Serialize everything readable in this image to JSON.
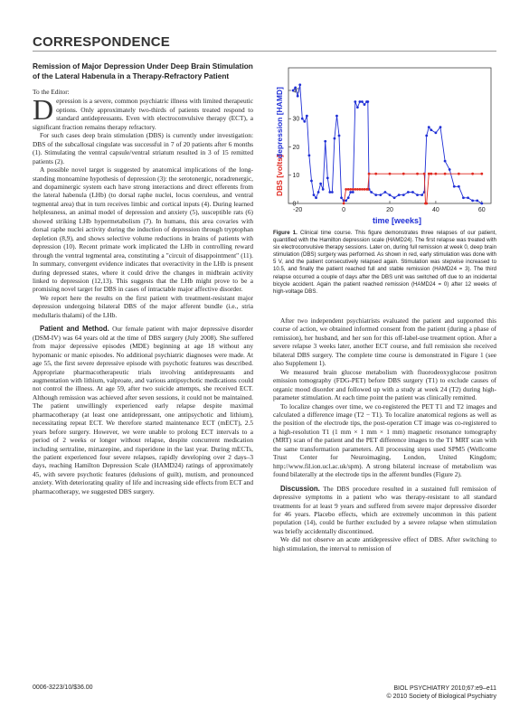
{
  "header": {
    "section": "CORRESPONDENCE"
  },
  "article": {
    "title": "Remission of Major Depression Under Deep Brain Stimulation of the Lateral Habenula in a Therapy-Refractory Patient",
    "salutation": "To the Editor:",
    "dropcap": "D",
    "intro_rest": "epression is a severe, common psychiatric illness with limited therapeutic options. Only approximately two-thirds of patients treated respond to standard antidepressants. Even with electroconvulsive therapy (ECT), a significant fraction remains therapy refractory.",
    "para2": "For such cases deep brain stimulation (DBS) is currently under investigation: DBS of the subcallosal cingulate was successful in 7 of 20 patients after 6 months (1). Stimulating the ventral capsule/ventral striatum resulted in 3 of 15 remitted patients (2).",
    "para3": "A possible novel target is suggested by anatomical implications of the long-standing monoamine hypothesis of depression (3): the serotonergic, noradrenergic, and dopaminergic system each have strong interactions and direct efferents from the lateral habenula (LHb) (to dorsal raphe nuclei, locus coeruleus, and ventral tegmental area) that in turn receives limbic and cortical inputs (4). During learned helplessness, an animal model of depression and anxiety (5), susceptible rats (6) showed striking LHb hypermetabolism (7). In humans, this area covaries with dorsal raphe nuclei activity during the induction of depression through tryptophan depletion (8,9), and shows selective volume reductions in brains of patients with depression (10). Recent primate work implicated the LHb in controlling reward through the ventral tegmental area, constituting a \"circuit of disappointment\" (11). In summary, convergent evidence indicates that overactivity in the LHb is present during depressed states, where it could drive the changes in midbrain activity linked to depression (12,13). This suggests that the LHb might prove to be a promising novel target for DBS in cases of intractable major affective disorder.",
    "para4": "We report here the results on the first patient with treatment-resistant major depression undergoing bilateral DBS of the major afferent bundle (i.e., stria medullaris thalami) of the LHb.",
    "methods_head": "Patient and Method.",
    "methods_text": "Our female patient with major depressive disorder (DSM-IV) was 64 years old at the time of DBS surgery (July 2008). She suffered from major depressive episodes (MDE) beginning at age 18 without any hypomanic or manic episodes. No additional psychiatric diagnoses were made. At age 55, the first severe depressive episode with psychotic features was described. Appropriate pharmacotherapeutic trials involving antidepressants and augmentation with lithium, valproate, and various antipsychotic medications could not control the illness. At age 59, after two suicide attempts, she received ECT. Although remission was achieved after seven sessions, it could not be maintained. The patient unwillingly experienced early relapse despite maximal pharmacotherapy (at least one antidepressant, one antipsychotic and lithium), necessitating repeat ECT. We therefore started maintenance ECT (mECT), 2.5 years before surgery. However, we were unable to prolong ECT intervals to a period of 2 weeks or longer without relapse, despite concurrent medication including sertraline, mirtazepine, and risperidone in the last year. During mECTs, the patient experienced four severe relapses, rapidly developing over 2 days–3 days, reaching Hamilton Depression Scale (HAMD24) ratings of approximately 45, with severe psychotic features (delusions of guilt), mutism, and pronounced anxiety. With deteriorating quality of life and increasing side effects from ECT and pharmacotherapy, we suggested DBS surgery.",
    "right_p1": "After two independent psychiatrists evaluated the patient and supported this course of action, we obtained informed consent from the patient (during a phase of remission), her husband, and her son for this off-label-use treatment option. After a severe relapse 3 weeks later, another ECT course, and full remission she received bilateral DBS surgery. The complete time course is demonstrated in Figure 1 (see also Supplement 1).",
    "right_p2": "We measured brain glucose metabolism with fluorodeoxyglucose positron emission tomography (FDG-PET) before DBS surgery (T1) to exclude causes of organic mood disorder and followed up with a study at week 24 (T2) during high-parameter stimulation. At each time point the patient was clinically remitted.",
    "right_p3": "To localize changes over time, we co-registered the PET T1 and T2 images and calculated a difference image (T2 − T1). To localize anatomical regions as well as the position of the electrode tips, the post-operation CT image was co-registered to a high-resolution T1 (1 mm × 1 mm × 1 mm) magnetic resonance tomography (MRT) scan of the patient and the PET difference images to the T1 MRT scan with the same transformation parameters. All processing steps used SPM5 (Wellcome Trust Center for Neuroimaging, London, United Kingdom; http://www.fil.ion.ucl.ac.uk/spm). A strong bilateral increase of metabolism was found bilaterally at the electrode tips in the afferent bundles (Figure 2).",
    "discussion_head": "Discussion.",
    "discussion_text": "The DBS procedure resulted in a sustained full remission of depressive symptoms in a patient who was therapy-resistant to all standard treatments for at least 9 years and suffered from severe major depressive disorder for 46 years. Placebo effects, which are extremely uncommon in this patient population (14), could be further excluded by a severe relapse when stimulation was briefly accidentally discontinued.",
    "right_p5": "We did not observe an acute antidepressive effect of DBS. After switching to high stimulation, the interval to remission of"
  },
  "figure": {
    "caption_label": "Figure 1.",
    "caption_text": "Clinical time course. This figure demonstrates three relapses of our patient, quantified with the Hamilton depression scale (HAMD24). The first relapse was treated with six electroconvulsive therapy sessions. Later on, during full remission at week 0, deep brain stimulation (DBS) surgery was performed. As shown in red, early stimulation was done with 5 V, and the patient consecutively relapsed again. Stimulation was stepwise increased to 10.5, and finally the patient reached full and stable remission (HAMD24 = 3). The third relapse occurred a couple of days after the DBS unit was switched off due to an incidental bicycle accident. Again the patient reached remission (HAMD24 = 0) after 12 weeks of high-voltage DBS."
  },
  "chart_data": {
    "type": "line",
    "xlabel": "time [weeks]",
    "ylabel_red": "DBS [volts]",
    "ylabel_blue": "depression [HAMD]",
    "xticks": [
      -20,
      0,
      20,
      40,
      60
    ],
    "yticks": [
      0,
      10,
      20,
      30,
      40
    ],
    "xlim": [
      -24,
      64
    ],
    "ylim": [
      0,
      48
    ],
    "series": [
      {
        "name": "depression [HAMD]",
        "color": "#1f2fd6",
        "x": [
          -22,
          -21,
          -20,
          -19,
          -18,
          -17,
          -16,
          -15,
          -14,
          -13,
          -12,
          -11,
          -10,
          -9,
          -8,
          -7,
          -6,
          -5,
          -4,
          -3,
          -2,
          -1,
          0,
          1,
          2,
          3,
          4,
          5,
          6,
          7,
          8,
          9,
          10,
          10.5,
          11,
          12,
          14,
          16,
          18,
          20,
          22,
          24,
          26,
          28,
          30,
          32,
          34,
          35,
          36,
          37,
          38,
          40,
          42,
          44,
          46,
          48,
          50,
          52,
          54,
          56,
          58,
          60
        ],
        "y": [
          40,
          41,
          38,
          42,
          30,
          29,
          31,
          17,
          8,
          3,
          2,
          4,
          7,
          5,
          22,
          9,
          4,
          4,
          23,
          31,
          24,
          2,
          1,
          1,
          2,
          4,
          4,
          36,
          34,
          36,
          36,
          35,
          36,
          36,
          5,
          4,
          3,
          3,
          4,
          3,
          2,
          3,
          3,
          4,
          4,
          3,
          3,
          4,
          24,
          27,
          26,
          25,
          27,
          15,
          12,
          6,
          6,
          2,
          2,
          1,
          1,
          0
        ]
      },
      {
        "name": "DBS [volts]",
        "color": "#e0281f",
        "x": [
          0,
          1,
          2,
          3,
          4,
          5,
          6,
          7,
          8,
          9,
          10,
          10.5,
          11,
          14,
          20,
          26,
          32,
          35,
          35.5,
          36,
          37,
          38,
          40,
          44,
          50,
          56,
          60
        ],
        "y": [
          0,
          5,
          5,
          5,
          5,
          5,
          5,
          5,
          5,
          5,
          5,
          5,
          10.5,
          10.5,
          10.5,
          10.5,
          10.5,
          10.5,
          0,
          0,
          10.5,
          10.5,
          10.5,
          10.5,
          10.5,
          10.5,
          10.5
        ]
      }
    ]
  },
  "footer": {
    "left": "0006-3223/10/$36.00",
    "right1": "BIOL PSYCHIATRY 2010;67:e9–e11",
    "right2": "© 2010 Society of Biological Psychiatry"
  }
}
